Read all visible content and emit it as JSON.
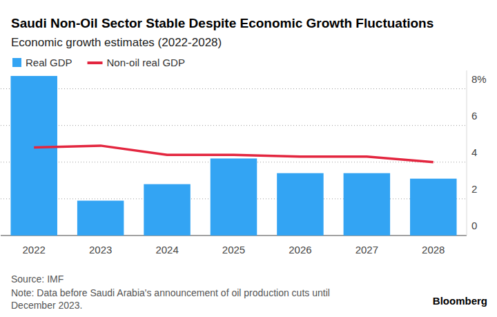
{
  "chart_data": {
    "type": "bar",
    "title": "Saudi Non-Oil Sector Stable Despite Economic Growth Fluctuations",
    "subtitle": "Economic growth estimates (2022-2028)",
    "categories": [
      "2022",
      "2023",
      "2024",
      "2025",
      "2026",
      "2027",
      "2028"
    ],
    "series": [
      {
        "name": "Real GDP",
        "type": "bar",
        "color": "#33a4f3",
        "values": [
          8.7,
          1.9,
          2.8,
          4.2,
          3.4,
          3.4,
          3.1
        ]
      },
      {
        "name": "Non-oil real GDP",
        "type": "line",
        "color": "#e3263f",
        "values": [
          4.8,
          4.9,
          4.4,
          4.4,
          4.3,
          4.3,
          4.0
        ]
      }
    ],
    "ylim": [
      0,
      9
    ],
    "yticks": [
      0,
      2,
      4,
      6,
      {
        "value": 8,
        "label": "8%"
      }
    ],
    "grid": true,
    "legend": "top-left",
    "source": "Source: IMF",
    "note": [
      "Note: Data before Saudi Arabia's announcement of oil production cuts until",
      "December 2023."
    ],
    "brand": "Bloomberg"
  }
}
